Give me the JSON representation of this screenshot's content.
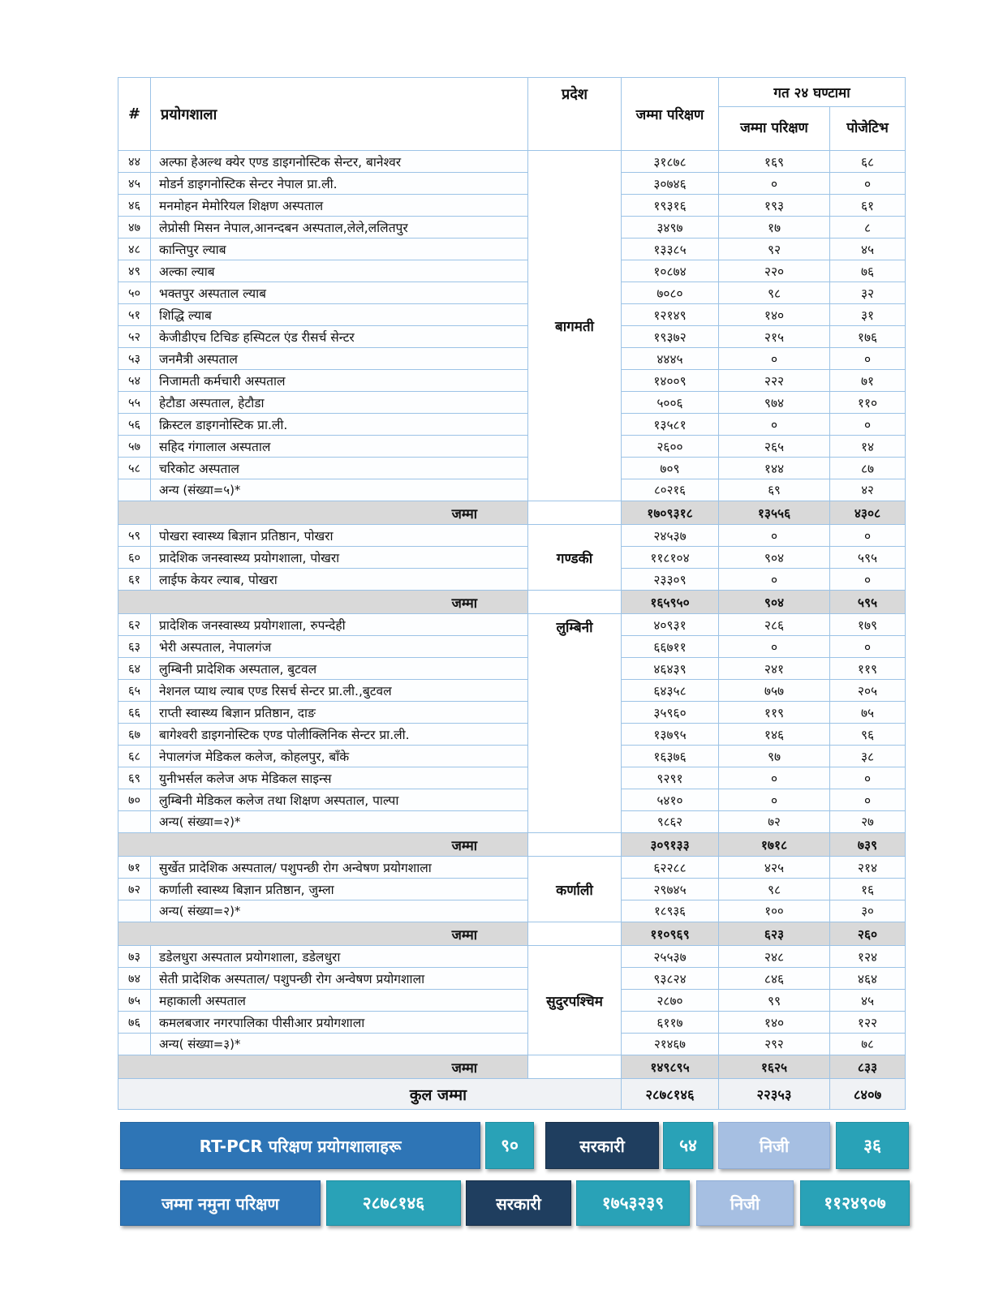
{
  "table": {
    "headers": {
      "num": "#",
      "lab": "प्रयोगशाला",
      "province": "प्रदेश",
      "total_tests": "जम्मा परिक्षण",
      "last24": "गत २४ घण्टामा",
      "last24_tests": "जम्मा परिक्षण",
      "last24_positive": "पोजेटिभ"
    },
    "sections": [
      {
        "province": "बागमती",
        "rows": [
          {
            "num": "४४",
            "name": "अल्फा हेअल्थ क्येर एण्ड डाइगनोस्टिक सेन्टर, बानेश्वर",
            "total": "३१८७८",
            "tests24": "१६९",
            "positive24": "६८"
          },
          {
            "num": "४५",
            "name": "मोडर्न  डाइगनोस्टिक सेन्टर नेपाल प्रा.ली.",
            "total": "३०७४६",
            "tests24": "०",
            "positive24": "०"
          },
          {
            "num": "४६",
            "name": "मनमोहन मेमोरियल शिक्षण अस्पताल",
            "total": "१९३१६",
            "tests24": "१९३",
            "positive24": "६१"
          },
          {
            "num": "४७",
            "name": "लेप्रोसी मिसन नेपाल,आनन्दबन अस्पताल,लेले,ललितपुर",
            "total": "३४९७",
            "tests24": "१७",
            "positive24": "८"
          },
          {
            "num": "४८",
            "name": "कान्तिपुर ल्याब",
            "total": "१३३८५",
            "tests24": "९२",
            "positive24": "४५"
          },
          {
            "num": "४९",
            "name": "अल्का ल्याब",
            "total": "१०८७४",
            "tests24": "२२०",
            "positive24": "७६"
          },
          {
            "num": "५०",
            "name": "भक्तपुर अस्पताल ल्याब",
            "total": "७०८०",
            "tests24": "९८",
            "positive24": "३२"
          },
          {
            "num": "५१",
            "name": "शिद्धि ल्याब",
            "total": "१२१४९",
            "tests24": "१४०",
            "positive24": "३१"
          },
          {
            "num": "५२",
            "name": "केजीडीएच टिचिङ हस्पिटल एंड रीसर्च सेन्टर",
            "total": "१९३७२",
            "tests24": "२१५",
            "positive24": "१७६"
          },
          {
            "num": "५३",
            "name": "जनमैत्री अस्पताल",
            "total": "४४४५",
            "tests24": "०",
            "positive24": "०"
          },
          {
            "num": "५४",
            "name": "निजामती कर्मचारी अस्पताल",
            "total": "१४००९",
            "tests24": "२२२",
            "positive24": "७१"
          },
          {
            "num": "५५",
            "name": "हेटौडा अस्पताल, हेटौडा",
            "total": "५००६",
            "tests24": "९७४",
            "positive24": "११०"
          },
          {
            "num": "५६",
            "name": "क्रिस्टल  डाइगनोस्टिक प्रा.ली.",
            "total": "१३५८१",
            "tests24": "०",
            "positive24": "०"
          },
          {
            "num": "५७",
            "name": "सहिद गंगालाल अस्पताल",
            "total": "२६००",
            "tests24": "२६५",
            "positive24": "१४"
          },
          {
            "num": "५८",
            "name": "चरिकोट अस्पताल",
            "total": "७०९",
            "tests24": "१४४",
            "positive24": "८७"
          }
        ],
        "other": {
          "name": "अन्य (संख्या=५)*",
          "total": "८०२१६",
          "tests24": "६९",
          "positive24": "४२"
        },
        "subtotal": {
          "label": "जम्मा",
          "total": "१७०९३१८",
          "tests24": "१३५५६",
          "positive24": "४३०८"
        }
      },
      {
        "province": "गण्डकी",
        "rows": [
          {
            "num": "५९",
            "name": "पोखरा स्वास्थ्य बिज्ञान प्रतिष्ठान, पोखरा",
            "total": "२४५३७",
            "tests24": "०",
            "positive24": "०"
          },
          {
            "num": "६०",
            "name": "प्रादेशिक जनस्वास्थ्य प्रयोगशाला, पोखरा",
            "total": "११८१०४",
            "tests24": "९०४",
            "positive24": "५९५"
          },
          {
            "num": "६१",
            "name": "लाईफ केयर ल्याब, पोखरा",
            "total": "२३३०९",
            "tests24": "०",
            "positive24": "०"
          }
        ],
        "other": null,
        "subtotal": {
          "label": "जम्मा",
          "total": "१६५९५०",
          "tests24": "९०४",
          "positive24": "५९५"
        }
      },
      {
        "province": "लुम्बिनी",
        "rows": [
          {
            "num": "६२",
            "name": "प्रादेशिक जनस्वास्थ्य प्रयोगशाला, रुपन्देही",
            "total": "४०९३१",
            "tests24": "२८६",
            "positive24": "१७९"
          },
          {
            "num": "६३",
            "name": "भेरी अस्पताल, नेपालगंज",
            "total": "६६७११",
            "tests24": "०",
            "positive24": "०"
          },
          {
            "num": "६४",
            "name": "लुम्बिनी प्रादेशिक अस्पताल, बुटवल",
            "total": "४६४३९",
            "tests24": "२४१",
            "positive24": "११९"
          },
          {
            "num": "६५",
            "name": "नेशनल प्याथ ल्याब एण्ड रिसर्च सेन्टर प्रा.ली.,बुटवल",
            "total": "६४३५८",
            "tests24": "७५७",
            "positive24": "२०५"
          },
          {
            "num": "६६",
            "name": "राप्ती स्वास्थ्य बिज्ञान प्रतिष्ठान, दाङ",
            "total": "३५९६०",
            "tests24": "११९",
            "positive24": "७५"
          },
          {
            "num": "६७",
            "name": "बागेश्वरी डाइगनोस्टिक एण्ड पोलीक्लिनिक सेन्टर प्रा.ली.",
            "total": "१३७९५",
            "tests24": "१४६",
            "positive24": "९६"
          },
          {
            "num": "६८",
            "name": "नेपालगंज मेडिकल कलेज, कोहलपुर, बाँके",
            "total": "१६३७६",
            "tests24": "९७",
            "positive24": "३८"
          },
          {
            "num": "६९",
            "name": "युनीभर्सल कलेज अफ मेडिकल साइन्स",
            "total": "९२९१",
            "tests24": "०",
            "positive24": "०"
          },
          {
            "num": "७०",
            "name": "लुम्बिनी मेडिकल कलेज तथा शिक्षण अस्पताल, पाल्पा",
            "total": "५४१०",
            "tests24": "०",
            "positive24": "०"
          }
        ],
        "other": {
          "name": "अन्य( संख्या=२)*",
          "total": "९८६२",
          "tests24": "७२",
          "positive24": "२७"
        },
        "subtotal": {
          "label": "जम्मा",
          "total": "३०९१३३",
          "tests24": "१७१८",
          "positive24": "७३९"
        }
      },
      {
        "province": "कर्णाली",
        "rows": [
          {
            "num": "७१",
            "name": "सुर्खेत प्रादेशिक अस्पताल/ पशुपन्छी रोग अन्वेषण प्रयोगशाला",
            "total": "६२२८८",
            "tests24": "४२५",
            "positive24": "२१४"
          },
          {
            "num": "७२",
            "name": "कर्णाली स्वास्थ्य बिज्ञान प्रतिष्ठान, जुम्ला",
            "total": "२९७४५",
            "tests24": "९८",
            "positive24": "१६"
          }
        ],
        "other": {
          "name": "अन्य( संख्या=२)*",
          "total": "१८९३६",
          "tests24": "१००",
          "positive24": "३०"
        },
        "subtotal": {
          "label": "जम्मा",
          "total": "११०९६९",
          "tests24": "६२३",
          "positive24": "२६०"
        }
      },
      {
        "province": "सुदुरपश्चिम",
        "rows": [
          {
            "num": "७३",
            "name": "डडेलधुरा अस्पताल प्रयोगशाला, डडेलधुरा",
            "total": "२५५३७",
            "tests24": "२४८",
            "positive24": "१२४"
          },
          {
            "num": "७४",
            "name": "सेती प्रादेशिक अस्पताल/ पशुपन्छी रोग अन्वेषण प्रयोगशाला",
            "total": "९३८२४",
            "tests24": "८४६",
            "positive24": "४६४"
          },
          {
            "num": "७५",
            "name": "महाकाली अस्पताल",
            "total": "२८७०",
            "tests24": "९९",
            "positive24": "४५"
          },
          {
            "num": "७६",
            "name": "कमलबजार नगरपालिका पीसीआर प्रयोगशाला",
            "total": "६११७",
            "tests24": "१४०",
            "positive24": "१२२"
          }
        ],
        "other": {
          "name": "अन्य( संख्या=३)*",
          "total": "२१४६७",
          "tests24": "२९२",
          "positive24": "७८"
        },
        "subtotal": {
          "label": "जम्मा",
          "total": "१४९८९५",
          "tests24": "१६२५",
          "positive24": "८३३"
        }
      }
    ],
    "grand_total": {
      "label": "कुल जम्मा",
      "total": "२८७८१४६",
      "tests24": "२२३५३",
      "positive24": "८४०७"
    }
  },
  "summary_rows": [
    {
      "label": "RT-PCR परिक्षण प्रयोगशालाहरू",
      "total": "९०",
      "gov_label": "सरकारी",
      "gov_value": "५४",
      "private_label": "निजी",
      "private_value": "३६"
    },
    {
      "label": "जम्मा नमुना परिक्षण",
      "total": "२८७८१४६",
      "gov_label": "सरकारी",
      "gov_value": "१७५३२३९",
      "private_label": "निजी",
      "private_value": "११२४९०७"
    }
  ],
  "colors": {
    "accent_blue": "#2e75b6",
    "teal": "#29a2b7",
    "navy": "#1f3e5f",
    "light_blue": "#a6bfe2",
    "subtotal_bg": "#d9d9d9",
    "grand_bg": "#f0f2f5",
    "table_border": "#9cc3e6"
  }
}
